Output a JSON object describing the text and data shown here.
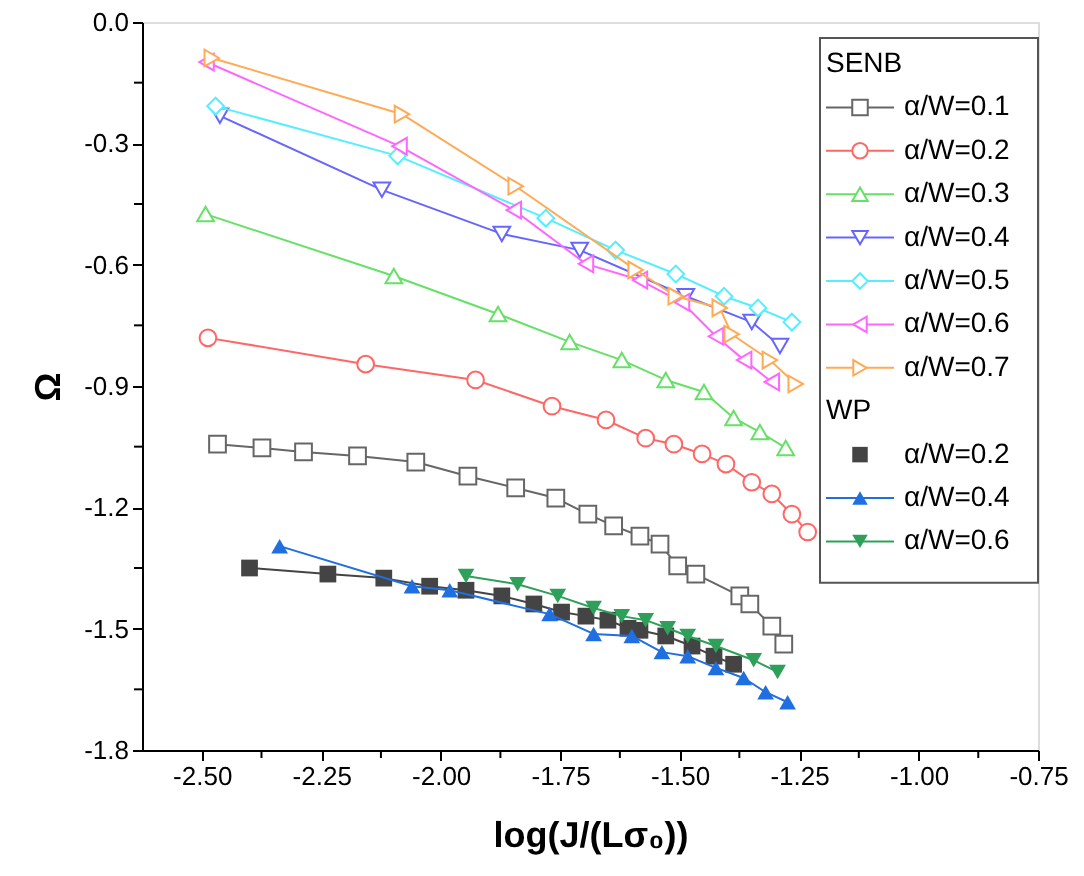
{
  "chart_data": {
    "type": "line",
    "xlabel": "log(J/(Lσ₀))",
    "ylabel": "Ω",
    "xlim": [
      -2.625,
      -0.75
    ],
    "ylim": [
      -1.8,
      0
    ],
    "xticks": [
      {
        "value": -2.5,
        "label": "-2.50"
      },
      {
        "value": -2.375,
        "label": null
      },
      {
        "value": -2.25,
        "label": "-2.25"
      },
      {
        "value": -2.125,
        "label": null
      },
      {
        "value": -2.0,
        "label": "-2.00"
      },
      {
        "value": -1.875,
        "label": null
      },
      {
        "value": -1.75,
        "label": "-1.75"
      },
      {
        "value": -1.625,
        "label": null
      },
      {
        "value": -1.5,
        "label": "-1.50"
      },
      {
        "value": -1.375,
        "label": null
      },
      {
        "value": -1.25,
        "label": "-1.25"
      },
      {
        "value": -1.125,
        "label": null
      },
      {
        "value": -1.0,
        "label": "-1.00"
      },
      {
        "value": -0.875,
        "label": null
      },
      {
        "value": -0.75,
        "label": "-0.75"
      }
    ],
    "yticks": [
      {
        "value": 0,
        "label": "0.0"
      },
      {
        "value": -0.15,
        "label": null
      },
      -0.3,
      {
        "value": -0.45,
        "label": null
      },
      -0.6,
      {
        "value": -0.75,
        "label": null
      },
      -0.9,
      {
        "value": -1.05,
        "label": null
      },
      -1.2,
      {
        "value": -1.35,
        "label": null
      },
      -1.5,
      {
        "value": -1.65,
        "label": null
      },
      -1.8
    ],
    "grid": false,
    "legend": "top right",
    "line_style": "solid",
    "annotations": [
      "SENB",
      "WP"
    ],
    "series": [
      {
        "name": "α/W=0.1",
        "color": "#666666",
        "marker": "square",
        "x": [
          -2.467,
          -2.374,
          -2.287,
          -2.174,
          -2.052,
          -1.943,
          -1.843,
          -1.759,
          -1.692,
          -1.638,
          -1.583,
          -1.541,
          -1.504,
          -1.466,
          -1.374,
          -1.353,
          -1.307,
          -1.282
        ],
        "values": [
          -1.044,
          -1.053,
          -1.063,
          -1.073,
          -1.088,
          -1.123,
          -1.152,
          -1.177,
          -1.217,
          -1.246,
          -1.271,
          -1.291,
          -1.345,
          -1.365,
          -1.419,
          -1.439,
          -1.494,
          -1.538
        ]
      },
      {
        "name": "α/W=0.2",
        "color": "#ff6666",
        "marker": "circle",
        "x": [
          -2.487,
          -2.157,
          -1.927,
          -1.767,
          -1.654,
          -1.571,
          -1.512,
          -1.453,
          -1.403,
          -1.349,
          -1.307,
          -1.265,
          -1.232
        ],
        "values": [
          -0.781,
          -0.846,
          -0.885,
          -0.95,
          -0.984,
          -1.029,
          -1.044,
          -1.068,
          -1.093,
          -1.138,
          -1.167,
          -1.217,
          -1.261
        ]
      },
      {
        "name": "α/W=0.3",
        "color": "#66e066",
        "marker": "triangle-up",
        "x": [
          -2.492,
          -2.098,
          -1.88,
          -1.73,
          -1.621,
          -1.529,
          -1.449,
          -1.387,
          -1.332,
          -1.278
        ],
        "values": [
          -0.475,
          -0.628,
          -0.722,
          -0.791,
          -0.836,
          -0.885,
          -0.915,
          -0.979,
          -1.014,
          -1.053
        ]
      },
      {
        "name": "α/W=0.4",
        "color": "#6666ff",
        "marker": "triangle-down",
        "x": [
          -2.462,
          -2.123,
          -1.872,
          -1.709,
          -1.487,
          -1.349,
          -1.29
        ],
        "values": [
          -0.232,
          -0.415,
          -0.524,
          -0.564,
          -0.678,
          -0.742,
          -0.801
        ]
      },
      {
        "name": "α/W=0.5",
        "color": "#55eeff",
        "marker": "diamond",
        "x": [
          -2.471,
          -2.09,
          -1.78,
          -1.634,
          -1.508,
          -1.407,
          -1.336,
          -1.265
        ],
        "values": [
          -0.208,
          -0.331,
          -0.485,
          -0.564,
          -0.623,
          -0.678,
          -0.707,
          -0.742
        ]
      },
      {
        "name": "α/W=0.6",
        "color": "#ff66ff",
        "marker": "triangle-left",
        "x": [
          -2.49,
          -2.086,
          -1.847,
          -1.696,
          -1.583,
          -1.495,
          -1.424,
          -1.365,
          -1.307
        ],
        "values": [
          -0.099,
          -0.307,
          -0.465,
          -0.598,
          -0.638,
          -0.693,
          -0.777,
          -0.836,
          -0.89
        ]
      },
      {
        "name": "α/W=0.7",
        "color": "#ffaa55",
        "marker": "triangle-right",
        "x": [
          -2.479,
          -2.081,
          -1.843,
          -1.592,
          -1.508,
          -1.416,
          -1.391,
          -1.311,
          -1.257
        ],
        "values": [
          -0.089,
          -0.228,
          -0.406,
          -0.613,
          -0.678,
          -0.707,
          -0.772,
          -0.836,
          -0.895
        ]
      },
      {
        "name": "α/W=0.2",
        "color": "#444444",
        "marker": "square-filled",
        "x": [
          -2.4,
          -2.236,
          -2.119,
          -2.023,
          -1.947,
          -1.872,
          -1.805,
          -1.747,
          -1.696,
          -1.65,
          -1.608,
          -1.583,
          -1.529,
          -1.474,
          -1.428,
          -1.387
        ],
        "values": [
          -1.35,
          -1.365,
          -1.375,
          -1.395,
          -1.405,
          -1.419,
          -1.439,
          -1.459,
          -1.469,
          -1.479,
          -1.499,
          -1.504,
          -1.518,
          -1.543,
          -1.568,
          -1.588
        ]
      },
      {
        "name": "α/W=0.4",
        "color": "#1f6fe0",
        "marker": "triangle-up-filled",
        "x": [
          -2.337,
          -2.06,
          -1.981,
          -1.772,
          -1.68,
          -1.6,
          -1.537,
          -1.483,
          -1.424,
          -1.366,
          -1.32,
          -1.274
        ],
        "values": [
          -1.296,
          -1.395,
          -1.405,
          -1.464,
          -1.513,
          -1.518,
          -1.558,
          -1.568,
          -1.597,
          -1.622,
          -1.657,
          -1.682
        ]
      },
      {
        "name": "α/W=0.6",
        "color": "#2ea05a",
        "marker": "triangle-down-filled",
        "x": [
          -1.947,
          -1.839,
          -1.755,
          -1.68,
          -1.621,
          -1.571,
          -1.525,
          -1.483,
          -1.424,
          -1.345,
          -1.295
        ],
        "values": [
          -1.37,
          -1.39,
          -1.419,
          -1.449,
          -1.469,
          -1.479,
          -1.499,
          -1.518,
          -1.543,
          -1.578,
          -1.607
        ]
      }
    ]
  }
}
